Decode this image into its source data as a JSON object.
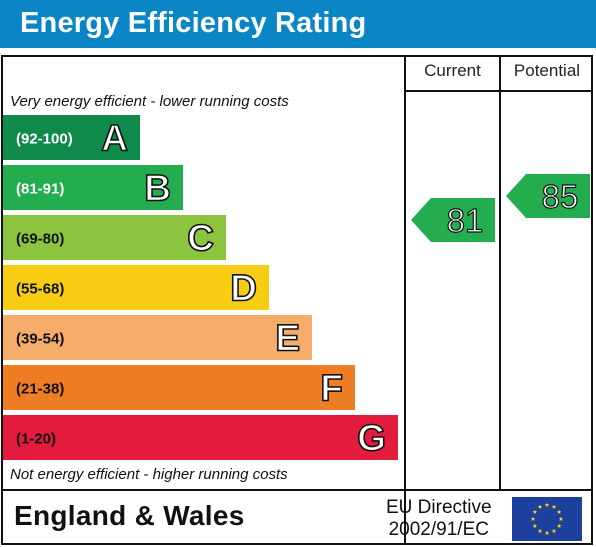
{
  "header": {
    "title": "Energy Efficiency Rating",
    "background_color": "#0a86c6"
  },
  "columns": {
    "current_label": "Current",
    "potential_label": "Potential"
  },
  "notes": {
    "top": "Very energy efficient - lower running costs",
    "bottom": "Not energy efficient - higher running costs"
  },
  "footer": {
    "country": "England & Wales",
    "directive_line1": "EU Directive",
    "directive_line2": "2002/91/EC",
    "flag_icon": "eu-flag-icon"
  },
  "chart_data": {
    "type": "bar",
    "categories": [
      "A",
      "B",
      "C",
      "D",
      "E",
      "F",
      "G"
    ],
    "bands": [
      {
        "letter": "A",
        "range": "(92-100)",
        "color": "#0f8a4b",
        "range_color": "#ffffff"
      },
      {
        "letter": "B",
        "range": "(81-91)",
        "color": "#24ad4f",
        "range_color": "#ffffff"
      },
      {
        "letter": "C",
        "range": "(69-80)",
        "color": "#8cc43f",
        "range_color": "#111111"
      },
      {
        "letter": "D",
        "range": "(55-68)",
        "color": "#f7cc13",
        "range_color": "#111111"
      },
      {
        "letter": "E",
        "range": "(39-54)",
        "color": "#f5ab6a",
        "range_color": "#111111"
      },
      {
        "letter": "F",
        "range": "(21-38)",
        "color": "#ef7d23",
        "range_color": "#111111"
      },
      {
        "letter": "G",
        "range": "(1-20)",
        "color": "#e31c3d",
        "range_color": "#111111"
      }
    ],
    "current": {
      "value": 81,
      "band": "B",
      "color": "#24ad4f"
    },
    "potential": {
      "value": 85,
      "band": "B",
      "color": "#24ad4f"
    }
  }
}
